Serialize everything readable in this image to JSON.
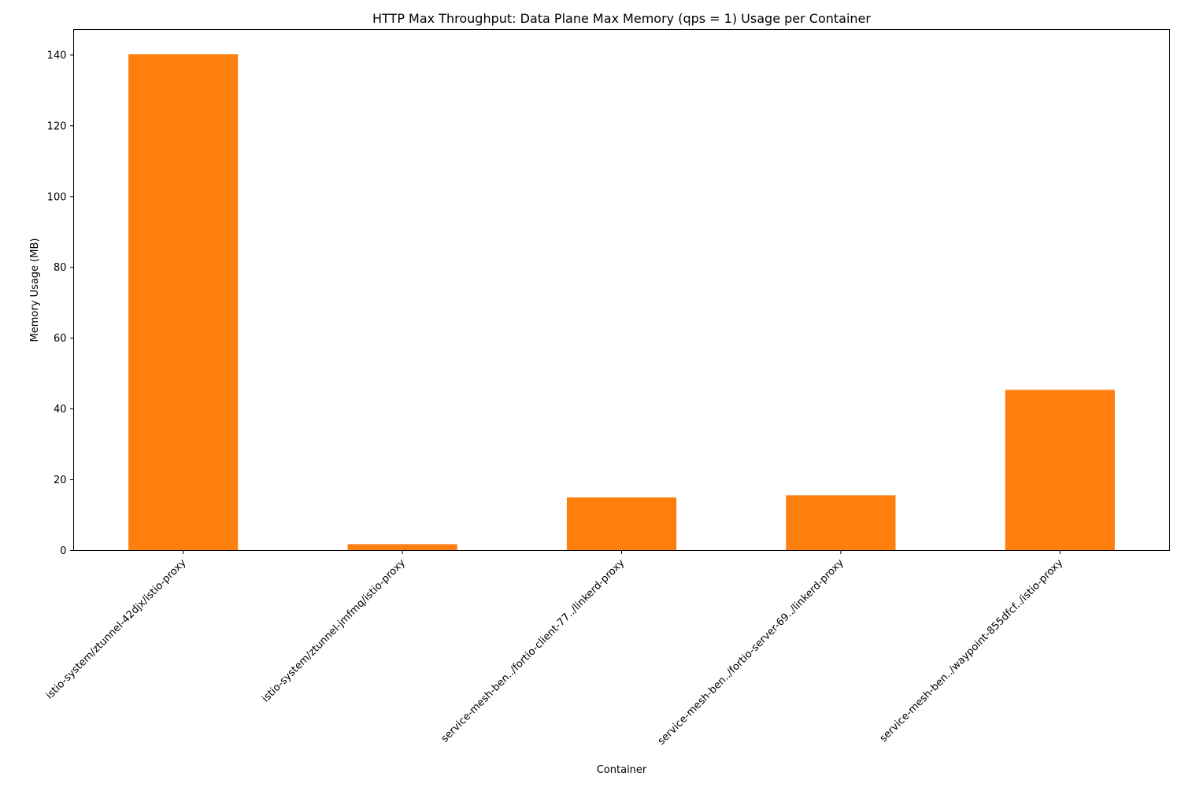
{
  "chart_data": {
    "type": "bar",
    "title": "HTTP Max Throughput: Data Plane Max Memory (qps = 1) Usage per Container",
    "xlabel": "Container",
    "ylabel": "Memory Usage (MB)",
    "categories": [
      "istio-system/ztunnel-42djx/istio-proxy",
      "istio-system/ztunnel-jmfmq/istio-proxy",
      "service-mesh-ben../fortio-client-77../linkerd-proxy",
      "service-mesh-ben../fortio-server-69../linkerd-proxy",
      "service-mesh-ben../waypoint-855dfcf../istio-proxy"
    ],
    "values": [
      140.2,
      1.8,
      15.0,
      15.6,
      45.4
    ],
    "ylim": [
      0,
      147.2
    ],
    "yticks": [
      0,
      20,
      40,
      60,
      80,
      100,
      120,
      140
    ],
    "bar_color": "#ff7f0e",
    "grid": false,
    "legend": "none"
  }
}
